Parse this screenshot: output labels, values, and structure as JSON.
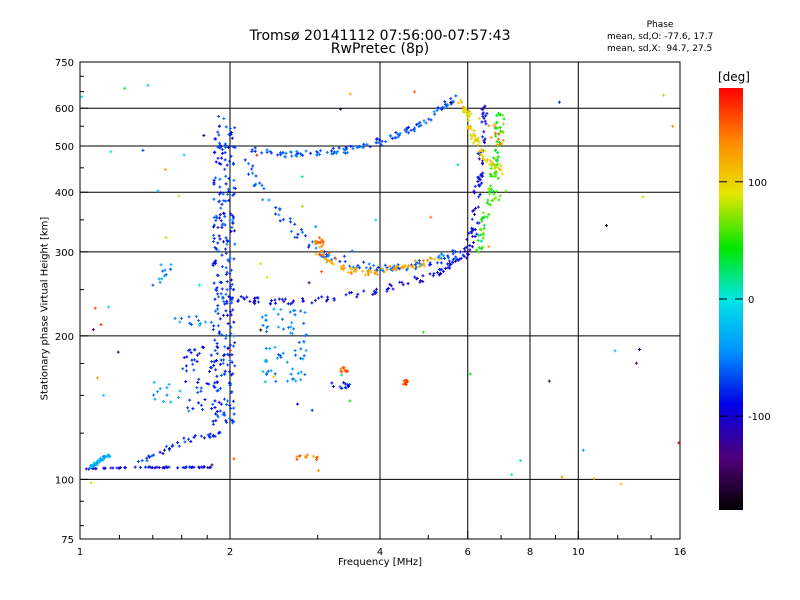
{
  "chart_data": {
    "type": "scatter",
    "title": "Tromsø 20141112 07:56:00-07:57:43",
    "subtitle": "RwPretec (8p)",
    "xlabel": "Frequency [MHz]",
    "ylabel": "Stationary phase Virtual Height [km]",
    "xscale": "log",
    "yscale": "log",
    "xlim": [
      1,
      16
    ],
    "ylim": [
      75,
      750
    ],
    "xticks": [
      1,
      2,
      4,
      6,
      8,
      10,
      16
    ],
    "yticks": [
      75,
      100,
      200,
      300,
      400,
      500,
      600,
      750
    ],
    "xgrid": [
      2,
      4,
      6,
      8,
      10
    ],
    "ygrid": [
      100,
      200,
      300,
      400,
      500,
      600
    ],
    "grid": true,
    "colorbar": {
      "label": "[deg]",
      "range": [
        -180,
        180
      ],
      "ticks": [
        100,
        0,
        -100
      ],
      "colormap": "rainbow"
    },
    "stats": {
      "header": "Phase",
      "o_line": "mean, sd,O: -77.6, 17.7",
      "x_line": "mean, sd,X:  94.7, 27.5"
    },
    "traces": [
      {
        "kind": "curve",
        "points": [
          [
            1.0,
            105
          ],
          [
            1.3,
            106
          ],
          [
            1.6,
            106
          ],
          [
            1.9,
            106
          ]
        ],
        "phase": -95,
        "spread": 0.5
      },
      {
        "kind": "curve",
        "points": [
          [
            1.3,
            108
          ],
          [
            1.6,
            120
          ],
          [
            1.9,
            125
          ]
        ],
        "phase": -80,
        "spread": 2.5
      },
      {
        "kind": "curve",
        "points": [
          [
            1.05,
            106
          ],
          [
            1.1,
            110
          ],
          [
            1.15,
            112
          ]
        ],
        "phase": -30,
        "spread": 1.5
      },
      {
        "kind": "vband",
        "x": [
          1.85,
          2.05
        ],
        "y": [
          130,
          580
        ],
        "phase": -75
      },
      {
        "kind": "blob",
        "x": [
          1.6,
          1.95
        ],
        "y": [
          140,
          190
        ],
        "phase": -80
      },
      {
        "kind": "blob",
        "x": [
          1.4,
          1.55
        ],
        "y": [
          255,
          285
        ],
        "phase": -50
      },
      {
        "kind": "blob",
        "x": [
          1.55,
          1.85
        ],
        "y": [
          210,
          220
        ],
        "phase": -50
      },
      {
        "kind": "blob",
        "x": [
          2.3,
          2.85
        ],
        "y": [
          160,
          230
        ],
        "phase": -45
      },
      {
        "kind": "blob",
        "x": [
          1.4,
          1.6
        ],
        "y": [
          145,
          160
        ],
        "phase": -40
      },
      {
        "kind": "curve",
        "points": [
          [
            2.05,
            240
          ],
          [
            2.4,
            235
          ],
          [
            3.0,
            238
          ],
          [
            4.0,
            250
          ],
          [
            5.0,
            265
          ],
          [
            5.6,
            285
          ],
          [
            6.0,
            300
          ],
          [
            6.2,
            340
          ],
          [
            6.3,
            420
          ],
          [
            6.4,
            500
          ],
          [
            6.5,
            600
          ]
        ],
        "phase": -95,
        "spread": 3
      },
      {
        "kind": "curve",
        "points": [
          [
            2.2,
            490
          ],
          [
            2.6,
            480
          ],
          [
            3.0,
            482
          ],
          [
            3.5,
            492
          ],
          [
            4.0,
            510
          ],
          [
            4.6,
            540
          ],
          [
            5.2,
            590
          ],
          [
            5.7,
            630
          ]
        ],
        "phase": -65,
        "spread": 3
      },
      {
        "kind": "curve",
        "points": [
          [
            2.1,
            480
          ],
          [
            2.5,
            360
          ],
          [
            3.0,
            300
          ],
          [
            3.6,
            280
          ],
          [
            4.2,
            275
          ],
          [
            5.0,
            285
          ],
          [
            5.8,
            300
          ]
        ],
        "phase": -65,
        "spread": 4
      },
      {
        "kind": "curve",
        "points": [
          [
            3.0,
            300
          ],
          [
            3.4,
            275
          ],
          [
            3.9,
            270
          ],
          [
            4.5,
            280
          ],
          [
            5.3,
            290
          ]
        ],
        "phase": 120,
        "spread": 3
      },
      {
        "kind": "curve",
        "points": [
          [
            3.0,
            320
          ],
          [
            3.1,
            300
          ]
        ],
        "phase": 140,
        "spread": 4
      },
      {
        "kind": "curve",
        "points": [
          [
            6.3,
            300
          ],
          [
            6.5,
            350
          ],
          [
            6.7,
            400
          ],
          [
            6.8,
            460
          ],
          [
            6.9,
            520
          ],
          [
            7.0,
            600
          ]
        ],
        "phase": 50,
        "spread": 3
      },
      {
        "kind": "curve",
        "points": [
          [
            5.8,
            620
          ],
          [
            6.0,
            580
          ],
          [
            6.2,
            520
          ],
          [
            6.5,
            470
          ],
          [
            7.0,
            450
          ]
        ],
        "phase": 100,
        "spread": 3
      },
      {
        "kind": "blob",
        "x": [
          6.6,
          7.2
        ],
        "y": [
          380,
          460
        ],
        "phase": 70
      },
      {
        "kind": "blob",
        "x": [
          6.6,
          7.1
        ],
        "y": [
          500,
          560
        ],
        "phase": 130
      },
      {
        "kind": "blob",
        "x": [
          4.45,
          4.55
        ],
        "y": [
          158,
          162
        ],
        "phase": 160
      },
      {
        "kind": "blob",
        "x": [
          2.7,
          3.0
        ],
        "y": [
          110,
          113
        ],
        "phase": 140
      },
      {
        "kind": "blob",
        "x": [
          3.3,
          3.45
        ],
        "y": [
          168,
          172
        ],
        "phase": 150
      },
      {
        "kind": "blob",
        "x": [
          3.2,
          3.5
        ],
        "y": [
          155,
          160
        ],
        "phase": -80
      },
      {
        "kind": "scatter",
        "x": [
          1.0,
          16.0
        ],
        "y": [
          90,
          700
        ],
        "phase": "mixed",
        "count": 70
      }
    ]
  }
}
